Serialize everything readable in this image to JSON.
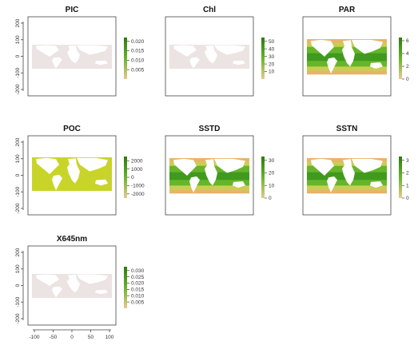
{
  "chart_data": {
    "type": "heatmap",
    "layout": "3x3 small multiples of global raster maps with color legends",
    "axes": {
      "y_ticks": [
        "-200",
        "-100",
        "0",
        "100",
        "200"
      ],
      "x_ticks": [
        "-100",
        "-50",
        "0",
        "50",
        "100"
      ],
      "x_ticks_shown_on": "X645nm"
    },
    "panels": [
      {
        "id": "pic",
        "title": "PIC",
        "legend_ticks": [
          "0.005",
          "0.010",
          "0.015",
          "0.020"
        ],
        "legend_range": [
          0.0,
          0.022
        ],
        "fill": "near-uniform pale pink"
      },
      {
        "id": "chl",
        "title": "Chl",
        "legend_ticks": [
          "10",
          "20",
          "30",
          "40",
          "50"
        ],
        "legend_range": [
          0,
          55
        ],
        "fill": "near-uniform pale pink"
      },
      {
        "id": "par",
        "title": "PAR",
        "legend_ticks": [
          "0",
          "2",
          "4",
          "6"
        ],
        "legend_range": [
          0,
          6.5
        ],
        "fill": "green tropics to orange high latitudes"
      },
      {
        "id": "poc",
        "title": "POC",
        "legend_ticks": [
          "-2000",
          "-1000",
          "0",
          "1000",
          "2000"
        ],
        "legend_range": [
          -2500,
          2500
        ],
        "fill": "uniform yellow-green"
      },
      {
        "id": "sstd",
        "title": "SSTD",
        "legend_ticks": [
          "0",
          "10",
          "20",
          "30"
        ],
        "legend_range": [
          0,
          33
        ],
        "fill": "green tropics to orange high latitudes"
      },
      {
        "id": "sstn",
        "title": "SSTN",
        "legend_ticks": [
          "0",
          "1",
          "2",
          "3"
        ],
        "legend_range": [
          0,
          3.3
        ],
        "fill": "green tropics to orange high latitudes"
      },
      {
        "id": "x645nm",
        "title": "X645nm",
        "legend_ticks": [
          "0.005",
          "0.010",
          "0.015",
          "0.020",
          "0.025",
          "0.030"
        ],
        "legend_range": [
          0.0,
          0.033
        ],
        "fill": "near-uniform pale pink"
      }
    ]
  },
  "colors": {
    "pale": "#ece3e3",
    "land": "#ffffff",
    "yellow_green": "#c9d42a",
    "green_dark": "#3f9a1e",
    "green": "#66b52a",
    "yellow": "#c8cf52",
    "orange": "#e8b36a",
    "legend_light": "#e8c890",
    "legend_dark": "#2f7a12",
    "axis": "#444444"
  }
}
